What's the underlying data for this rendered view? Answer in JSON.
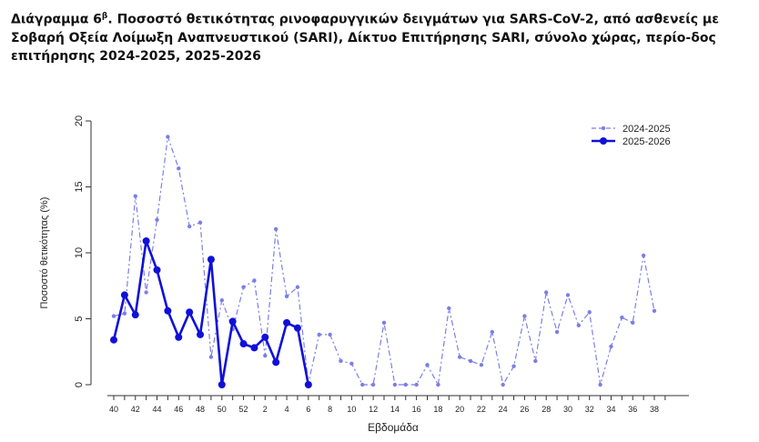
{
  "title": {
    "prefix": "Διάγραμμα 6",
    "superscript": "β",
    "text": ". Ποσοστό θετικότητας ρινοφαρυγγικών δειγμάτων για SARS-CoV-2, από ασθενείς με Σοβαρή Οξεία Λοίμωξη Αναπνευστικού (SARI), Δίκτυο Επιτήρησης SARI, σύνολο χώρας, περίο-δος επιτήρησης 2024-2025, 2025-2026"
  },
  "chart_data": {
    "type": "line",
    "xlabel": "Εβδομάδα",
    "ylabel": "Ποσοστό θετικότητας (%)",
    "ylim": [
      0,
      20
    ],
    "yticks": [
      0,
      5,
      10,
      15,
      20
    ],
    "x_categories": [
      "40",
      "41",
      "42",
      "43",
      "44",
      "45",
      "46",
      "47",
      "48",
      "49",
      "50",
      "51",
      "52",
      "1",
      "2",
      "3",
      "4",
      "5",
      "6",
      "7",
      "8",
      "9",
      "10",
      "11",
      "12",
      "13",
      "14",
      "15",
      "16",
      "17",
      "18",
      "19",
      "20",
      "21",
      "22",
      "23",
      "24",
      "25",
      "26",
      "27",
      "28",
      "29",
      "30",
      "31",
      "32",
      "33",
      "34",
      "35",
      "36",
      "37",
      "38",
      "39"
    ],
    "x_tick_labels_shown": [
      "40",
      "42",
      "44",
      "46",
      "48",
      "50",
      "52",
      "2",
      "4",
      "6",
      "8",
      "10",
      "12",
      "14",
      "16",
      "18",
      "20",
      "22",
      "24",
      "26",
      "28",
      "30",
      "32",
      "34",
      "36",
      "38"
    ],
    "legend_position": "top-right",
    "series": [
      {
        "name": "2024-2025",
        "style": "dashed",
        "color": "#7b7ee6",
        "values": [
          5.2,
          5.4,
          14.3,
          7.0,
          12.5,
          18.8,
          16.4,
          12.0,
          12.3,
          2.1,
          6.4,
          4.2,
          7.4,
          7.9,
          2.2,
          11.8,
          6.7,
          7.4,
          0.1,
          3.8,
          3.8,
          1.8,
          1.6,
          0.0,
          0.0,
          4.7,
          0.0,
          0.0,
          0.0,
          1.5,
          0.0,
          5.8,
          2.1,
          1.8,
          1.5,
          4.0,
          0.0,
          1.4,
          5.2,
          1.8,
          7.0,
          4.0,
          6.8,
          4.5,
          5.5,
          0.0,
          2.9,
          5.1,
          4.7,
          9.8,
          5.6
        ]
      },
      {
        "name": "2025-2026",
        "style": "solid",
        "color": "#1010d8",
        "values": [
          3.4,
          6.8,
          5.3,
          10.9,
          8.7,
          5.6,
          3.6,
          5.5,
          3.8,
          9.5,
          0.0,
          4.8,
          3.1,
          2.8,
          3.6,
          1.7,
          4.7,
          4.3,
          0.0
        ]
      }
    ]
  }
}
